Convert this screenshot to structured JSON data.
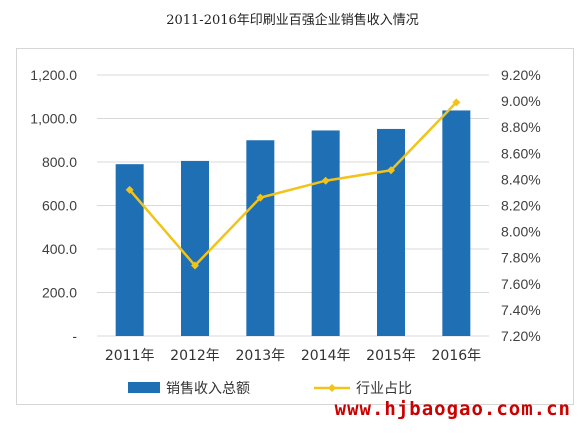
{
  "title": "2011-2016年印刷业百强企业销售收入情况",
  "watermark": "www.hjbaogao.com.cn",
  "chart_data": {
    "type": "bar",
    "categories": [
      "2011年",
      "2012年",
      "2013年",
      "2014年",
      "2015年",
      "2016年"
    ],
    "series": [
      {
        "name": "销售收入总额",
        "type": "bar",
        "axis": "left",
        "color": "#1f6fb5",
        "values": [
          790,
          805,
          900,
          945,
          952,
          1037
        ]
      },
      {
        "name": "行业占比",
        "type": "line",
        "axis": "right",
        "color": "#f2c318",
        "values": [
          8.32,
          7.74,
          8.26,
          8.39,
          8.47,
          8.99
        ]
      }
    ],
    "y_left": {
      "ylim": [
        0,
        1200
      ],
      "ticks": [
        "-",
        "200.0",
        "400.0",
        "600.0",
        "800.0",
        "1,000.0",
        "1,200.0"
      ]
    },
    "y_right": {
      "ylim": [
        7.2,
        9.2
      ],
      "ticks": [
        "7.20%",
        "7.40%",
        "7.60%",
        "7.80%",
        "8.00%",
        "8.20%",
        "8.40%",
        "8.60%",
        "8.80%",
        "9.00%",
        "9.20%"
      ]
    },
    "grid": true,
    "legend": "bottom"
  }
}
